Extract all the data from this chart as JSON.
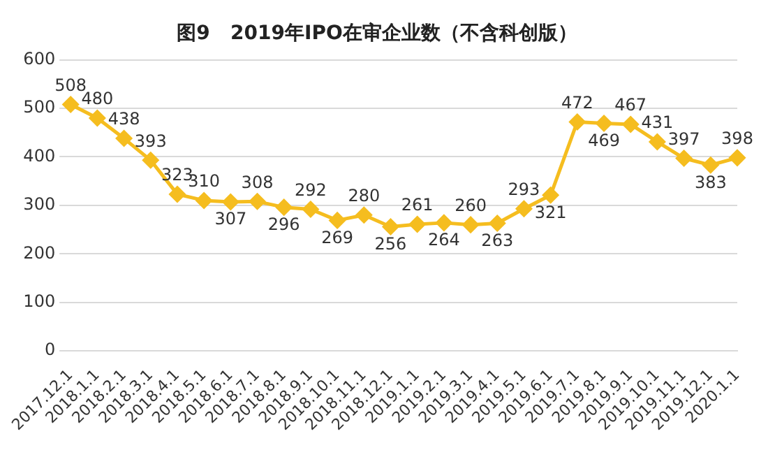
{
  "chart_data": {
    "type": "line",
    "title": "图9   2019年IPO在审企业数（不含科创版）",
    "categories": [
      "2017.12.1",
      "2018.1.1",
      "2018.2.1",
      "2018.3.1",
      "2018.4.1",
      "2018.5.1",
      "2018.6.1",
      "2018.7.1",
      "2018.8.1",
      "2018.9.1",
      "2018.10.1",
      "2018.11.1",
      "2018.12.1",
      "2019.1.1",
      "2019.2.1",
      "2019.3.1",
      "2019.4.1",
      "2019.5.1",
      "2019.6.1",
      "2019.7.1",
      "2019.8.1",
      "2019.9.1",
      "2019.10.1",
      "2019.11.1",
      "2019.12.1",
      "2020.1.1"
    ],
    "series": [
      {
        "color": "#f5bd1f",
        "values": [
          508,
          480,
          438,
          393,
          323,
          310,
          307,
          308,
          296,
          292,
          269,
          280,
          256,
          261,
          264,
          260,
          263,
          293,
          321,
          472,
          469,
          467,
          431,
          397,
          383,
          398
        ]
      }
    ],
    "ylim": [
      0,
      600
    ],
    "yticks": [
      0,
      100,
      200,
      300,
      400,
      500,
      600
    ],
    "grid": "y",
    "legend": false,
    "marker": "diamond",
    "line_style": "solid",
    "data_labels": true
  }
}
